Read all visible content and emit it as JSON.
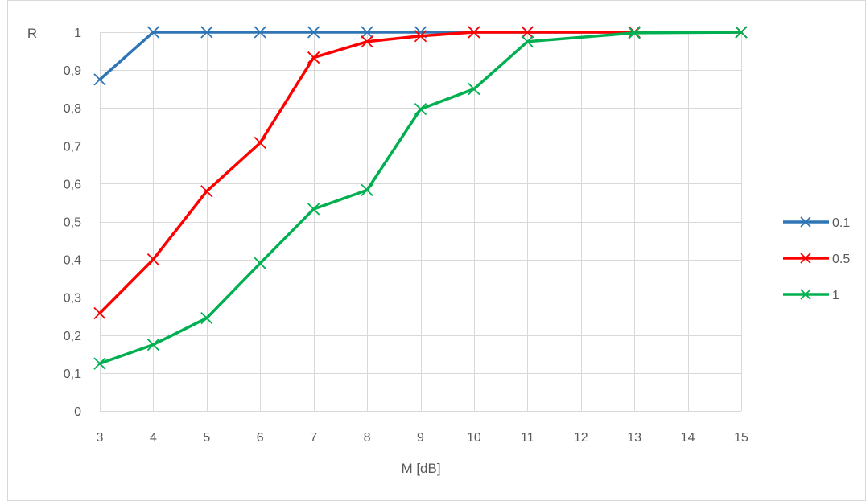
{
  "chart_data": {
    "type": "line",
    "title": "",
    "xlabel": "M [dB]",
    "ylabel": "R",
    "x": [
      3,
      4,
      5,
      6,
      7,
      8,
      9,
      10,
      11,
      13,
      15
    ],
    "x_ticks": [
      "3",
      "4",
      "5",
      "6",
      "7",
      "8",
      "9",
      "10",
      "11",
      "12",
      "13",
      "14",
      "15"
    ],
    "xlim": [
      3,
      15
    ],
    "y_ticks": [
      "0",
      "0,1",
      "0,2",
      "0,3",
      "0,4",
      "0,5",
      "0,6",
      "0,7",
      "0,8",
      "0,9",
      "1"
    ],
    "ylim": [
      0,
      1
    ],
    "grid": true,
    "legend_position": "right",
    "series": [
      {
        "name": "0.1",
        "color": "#2e75b6",
        "marker": "x",
        "values": [
          0.875,
          1.0,
          1.0,
          1.0,
          1.0,
          1.0,
          1.0,
          1.0,
          1.0,
          1.0,
          1.0
        ]
      },
      {
        "name": "0.5",
        "color": "#ff0000",
        "marker": "x",
        "values": [
          0.258,
          0.4,
          0.58,
          0.708,
          0.933,
          0.975,
          0.99,
          1.0,
          1.0,
          1.0,
          1.0
        ]
      },
      {
        "name": "1",
        "color": "#00b050",
        "marker": "x",
        "values": [
          0.125,
          0.175,
          0.245,
          0.39,
          0.533,
          0.583,
          0.797,
          0.85,
          0.975,
          0.998,
          1.0
        ]
      }
    ]
  }
}
